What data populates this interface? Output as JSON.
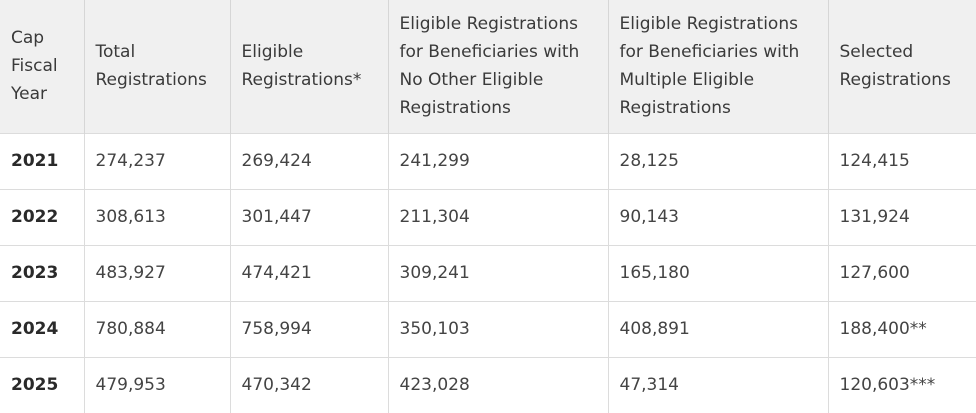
{
  "table": {
    "headers": [
      "Cap Fiscal Year",
      "Total Registrations",
      "Eligible Registrations*",
      "Eligible Registrations for Beneficiaries with No Other Eligible Registrations",
      "Eligible Registrations for Beneficiaries with Multiple Eligible Registrations",
      "Selected Registrations"
    ],
    "rows": [
      [
        "2021",
        "274,237",
        "269,424",
        "241,299",
        "28,125",
        "124,415"
      ],
      [
        "2022",
        "308,613",
        "301,447",
        "211,304",
        "90,143",
        "131,924"
      ],
      [
        "2023",
        "483,927",
        "474,421",
        "309,241",
        "165,180",
        "127,600"
      ],
      [
        "2024",
        "780,884",
        "758,994",
        "350,103",
        "408,891",
        "188,400**"
      ],
      [
        "2025",
        "479,953",
        "470,342",
        "423,028",
        "47,314",
        "120,603***"
      ]
    ]
  }
}
